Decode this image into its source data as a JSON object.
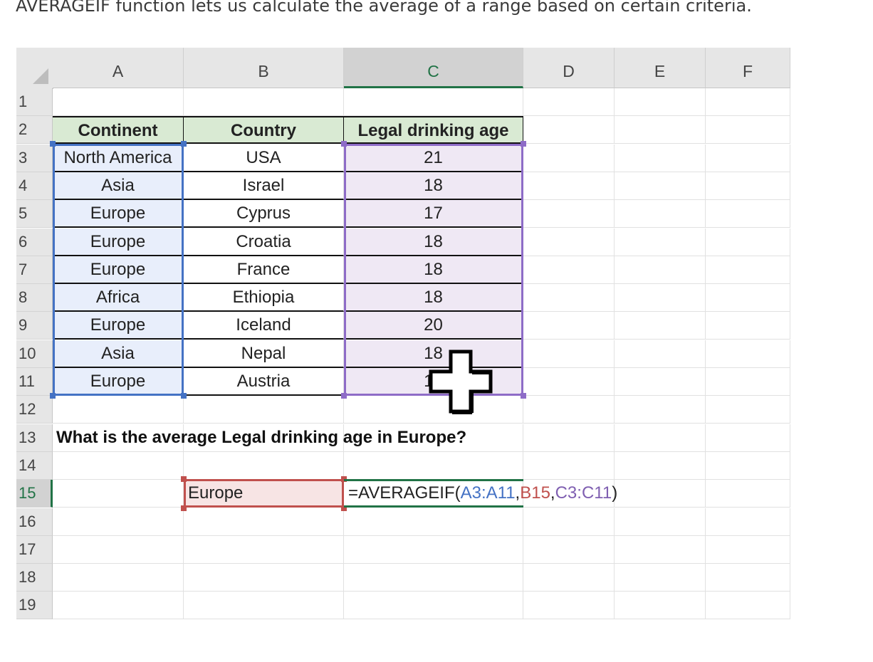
{
  "intro_text": "AVERAGEIF function lets us calculate the average of a range based on certain criteria.",
  "columns": [
    "A",
    "B",
    "C",
    "D",
    "E",
    "F"
  ],
  "rows": [
    "1",
    "2",
    "3",
    "4",
    "5",
    "6",
    "7",
    "8",
    "9",
    "10",
    "11",
    "12",
    "13",
    "14",
    "15",
    "16",
    "17",
    "18",
    "19"
  ],
  "table": {
    "headers": [
      "Continent",
      "Country",
      "Legal drinking age"
    ],
    "data": [
      [
        "North America",
        "USA",
        "21"
      ],
      [
        "Asia",
        "Israel",
        "18"
      ],
      [
        "Europe",
        "Cyprus",
        "17"
      ],
      [
        "Europe",
        "Croatia",
        "18"
      ],
      [
        "Europe",
        "France",
        "18"
      ],
      [
        "Africa",
        "Ethiopia",
        "18"
      ],
      [
        "Europe",
        "Iceland",
        "20"
      ],
      [
        "Asia",
        "Nepal",
        "18"
      ],
      [
        "Europe",
        "Austria",
        "16"
      ]
    ]
  },
  "question": "What is the average Legal drinking age in Europe?",
  "criteria_cell": "Europe",
  "formula": {
    "prefix": "=AVERAGEIF(",
    "arg1": "A3:A11",
    "sep1": ",",
    "arg2": "B15",
    "sep2": ",",
    "arg3": "C3:C11",
    "suffix": ")"
  },
  "colors": {
    "header_fill": "#d9ead3",
    "range_blue": "#4472c4",
    "range_purple": "#8e6cc7",
    "range_red": "#c0504d",
    "active_green": "#217346"
  }
}
